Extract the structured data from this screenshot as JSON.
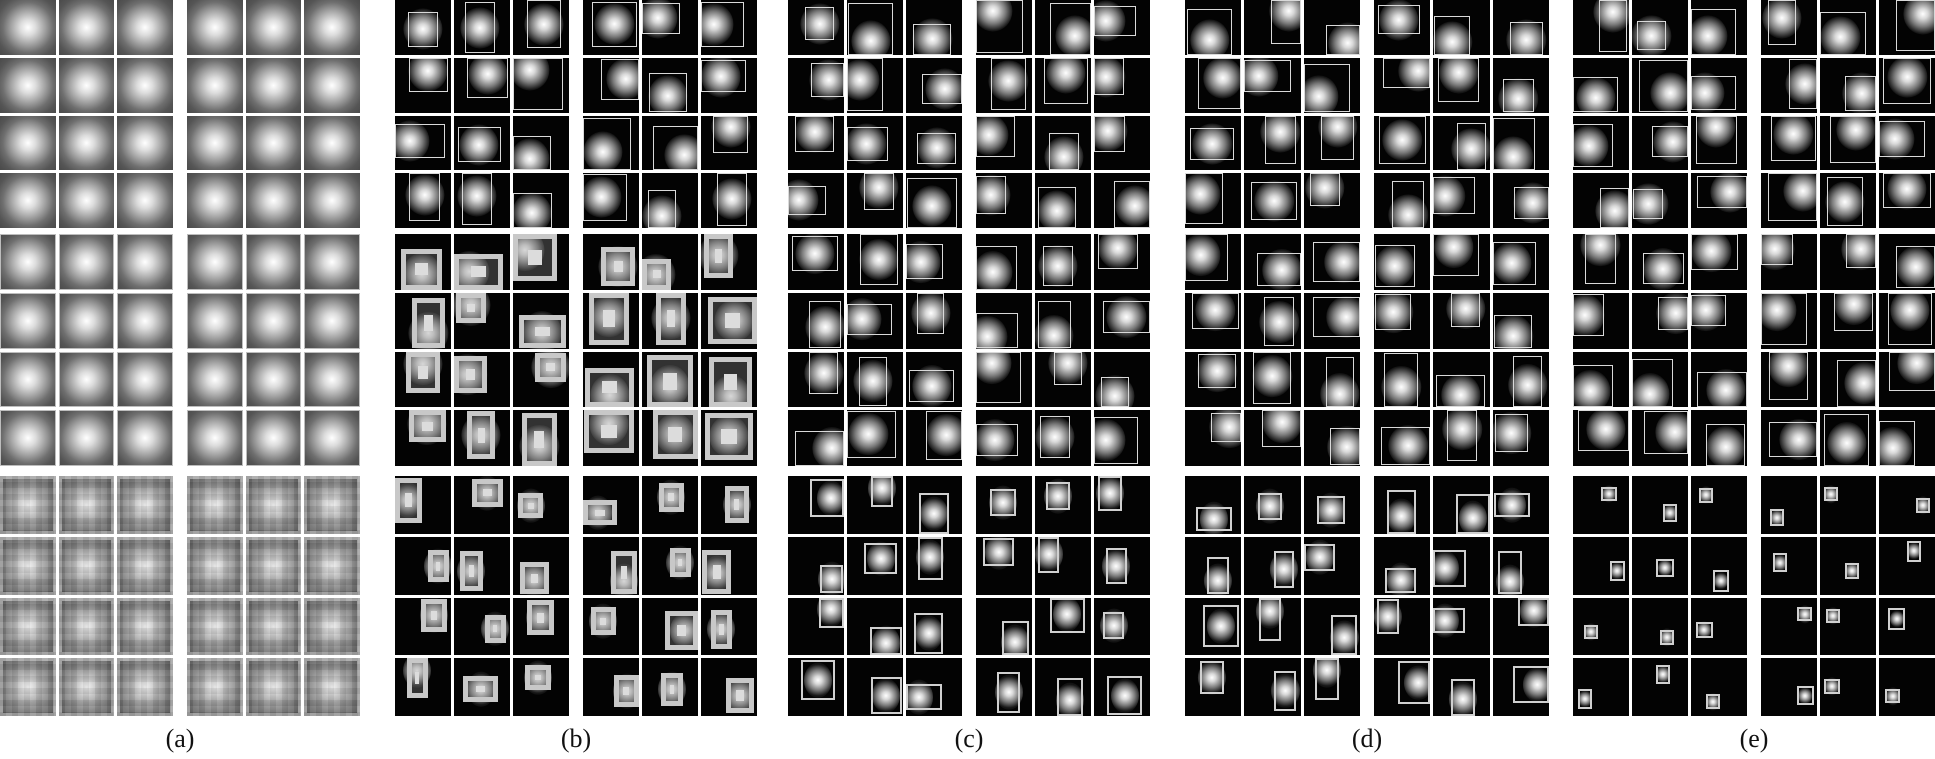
{
  "figure": {
    "subfigure_labels": [
      "(a)",
      "(b)",
      "(c)",
      "(d)",
      "(e)"
    ],
    "panel_count": 5,
    "rows_per_panel": 3,
    "grids_per_row": 2,
    "grid_shape": [
      4,
      3
    ],
    "colors": {
      "background": "#ffffff",
      "tile_dark": "#030303",
      "box_outline": "#d9d9d9",
      "caption_text": "#111111"
    }
  }
}
